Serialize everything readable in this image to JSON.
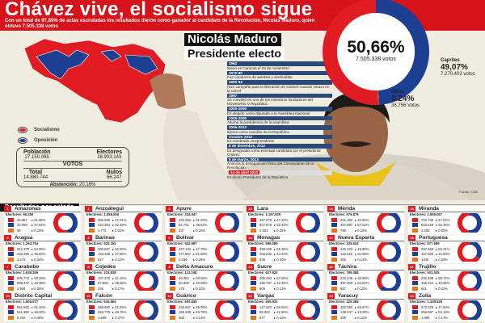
{
  "header": {
    "title": "Chávez vive, el socialismo sigue",
    "subtitle": "Con un total de 97,89% de actas escrutadas los resultados dieron como ganador al candidato de la Revolución, Nicolás Maduro, quien obtuvo 7.505.338 votos"
  },
  "colors": {
    "socialismo": "#e01b22",
    "oposicion": "#1c3f94",
    "otros": "#e8751a",
    "header": "#d6121a"
  },
  "legend": [
    {
      "label": "Socialismo",
      "color": "#e01b22"
    },
    {
      "label": "Oposición",
      "color": "#1c3f94"
    }
  ],
  "stats": {
    "poblacion_label": "Población",
    "poblacion": "27.150.095",
    "electores_label": "Electores",
    "electores": "18.903.143",
    "votos_label": "VOTOS",
    "total_label": "Total",
    "total": "14.880.744",
    "nulos_label": "Nulos",
    "nulos": "66.247",
    "abstencion_label": "Abstención:",
    "abstencion": "20.16%"
  },
  "winner": {
    "name": "Nicolás Maduro",
    "title": "Presidente electo",
    "percent": "50,66%",
    "votes": "7.505.338 votos",
    "share": 50.66
  },
  "capriles": {
    "label": "Capriles",
    "percent": "49,07%",
    "votes": "7.270.403 votos",
    "share": 49.07
  },
  "otros": {
    "label": "Otros",
    "percent": "0.24%",
    "votes": "38.756 Votos",
    "share": 0.24
  },
  "timeline": [
    {
      "date": "1962",
      "text": "Nació en Caracas el 23 de noviembre"
    },
    {
      "date": "1970-90",
      "text": "Fue conductor de autobús y sindicalista"
    },
    {
      "date": "1992-94",
      "text": "Hizo campaña para la liberación de Chávez cuando estuvo en la cárcel"
    },
    {
      "date": "1997",
      "text": "Se convirtió en uno de los miembros fundadores del Movimiento V República"
    },
    {
      "date": "2000-2006",
      "text": "Es elegido como diputado a la Asamblea Nacional"
    },
    {
      "date": "2005-2006",
      "text": "Asume la presidencia de la Asamblea"
    },
    {
      "date": "2006-2013",
      "text": "Ejerce como canciller de la República"
    },
    {
      "date": "Octubre 2012",
      "text": "Es nombrado vicepresidente"
    },
    {
      "date": "8 de diciembre, 2012",
      "text": "Es designado como eventual candidato por el presidente Chávez"
    },
    {
      "date": "5 de marzo, 2013",
      "text": "Anuncia la desaparición física del Comandante de la Revolución"
    },
    {
      "date": "14 de abril 2013",
      "text": "Es electo Presidente de la República",
      "highlight": true
    }
  ],
  "fuente": "Fuente: CNE",
  "results_title": "Resultados por estado",
  "electores_label": "Electores:",
  "states": [
    {
      "n": "1",
      "name": "Amazonas",
      "elec": "96.250",
      "r": [
        "35.867",
        "51.96%"
      ],
      "b": [
        "33.095",
        "47.82%"
      ],
      "o": [
        "98",
        "0.18%"
      ]
    },
    {
      "n": "2",
      "name": "Anzoátegui",
      "elec": "1.056.509",
      "r": [
        "382.590",
        "47.01%"
      ],
      "b": [
        "424.304",
        "52.46%"
      ],
      "o": [
        "1.772",
        "0.20%"
      ]
    },
    {
      "n": "3",
      "name": "Apure",
      "elec": "316.947",
      "r": [
        "134.252",
        "61.20%"
      ],
      "b": [
        "84.731",
        "38.64%"
      ],
      "o": [
        "347",
        "0.16%"
      ]
    },
    {
      "n": "4",
      "name": "Aragua",
      "elec": "1.264.754",
      "r": [
        "512.379",
        "54.05%"
      ],
      "b": [
        "432.280",
        "45.60%"
      ],
      "o": [
        "3.275",
        "0.34%"
      ]
    },
    {
      "n": "5",
      "name": "Barinas",
      "elec": "525.152",
      "r": [
        "200.687",
        "52.00%"
      ],
      "b": [
        "193.325",
        "47.86%"
      ],
      "o": [
        "527",
        "0.12%"
      ]
    },
    {
      "n": "6",
      "name": "Bolívar",
      "elec": "942.697",
      "r": [
        "347.132",
        "47.79%"
      ],
      "b": [
        "377.857",
        "51.93%"
      ],
      "o": [
        "2.039",
        "0.28%"
      ]
    },
    {
      "n": "7",
      "name": "Carabobo",
      "elec": "1.538.259",
      "r": [
        "606.772",
        "50.29%"
      ],
      "b": [
        "598.237",
        "49.35%"
      ],
      "o": [
        "2.964",
        "0.36%"
      ]
    },
    {
      "n": "8",
      "name": "Cojedes",
      "elec": "223.828",
      "r": [
        "107.370",
        "61.15%"
      ],
      "b": [
        "67.856",
        "38.65%"
      ],
      "o": [
        "336",
        "0.17%"
      ]
    },
    {
      "n": "9",
      "name": "Delta Amacuro",
      "elec": "113.248",
      "r": [
        "46.052",
        "59.68%"
      ],
      "b": [
        "30.929",
        "40.09%"
      ],
      "o": [
        "176",
        "0.22%"
      ]
    },
    {
      "n": "10",
      "name": "Distrito Capital",
      "elec": "1.608.577",
      "r": [
        "651.882",
        "51.32%"
      ],
      "b": [
        "611.369",
        "48.20%"
      ],
      "o": [
        "5.202",
        "0.48%"
      ]
    },
    {
      "n": "11",
      "name": "Falcón",
      "elec": "634.654",
      "r": [
        "268.982",
        "51.63%"
      ],
      "b": [
        "253.779",
        "48.76%"
      ],
      "o": [
        "1.608",
        "0.37%"
      ]
    },
    {
      "n": "12",
      "name": "Guárico",
      "elec": "500.835",
      "r": [
        "226.667",
        "59.09%"
      ],
      "b": [
        "156.288",
        "40.78%"
      ],
      "o": [
        "500",
        "0.13%"
      ]
    },
    {
      "n": "13",
      "name": "Lara",
      "elec": "1.197.939",
      "r": [
        "457.978",
        "47.32%"
      ],
      "b": [
        "507.878",
        "52.42%"
      ],
      "o": [
        "2.501",
        "0.25%"
      ]
    },
    {
      "n": "14",
      "name": "Mérida",
      "elec": "576.879",
      "r": [
        "201.282",
        "42.82%"
      ],
      "b": [
        "267.997",
        "57.02%"
      ],
      "o": [
        "796",
        "0.16%"
      ]
    },
    {
      "n": "15",
      "name": "Miranda",
      "elec": "1.959.067",
      "r": [
        "734.756",
        "47.04%"
      ],
      "b": [
        "818.228",
        "52.35%"
      ],
      "o": [
        "4.265",
        "0.60%"
      ]
    },
    {
      "n": "16",
      "name": "Monagas",
      "elec": "595.085",
      "r": [
        "258.335",
        "55.36%"
      ],
      "b": [
        "208.232",
        "44.43%"
      ],
      "o": [
        "939",
        "0.20%"
      ]
    },
    {
      "n": "17",
      "name": "Nueva Esparta",
      "elec": "325.544",
      "r": [
        "125.343",
        "46.90%"
      ],
      "b": [
        "142.210",
        "52.98%"
      ],
      "o": [
        "365",
        "0.14%"
      ]
    },
    {
      "n": "18",
      "name": "Portuguesa",
      "elec": "577.585",
      "r": [
        "297.469",
        "65.21%"
      ],
      "b": [
        "157.865",
        "34.50%"
      ],
      "o": [
        "1345",
        "0.29%"
      ]
    },
    {
      "n": "19",
      "name": "Sucre",
      "elec": "627.822",
      "r": [
        "265.252",
        "57.60%"
      ],
      "b": [
        "195.787",
        "42.45%"
      ],
      "o": [
        "609",
        "0.13%"
      ]
    },
    {
      "n": "20",
      "name": "Táchira",
      "elec": "799.088",
      "r": [
        "233.249",
        "36.95%"
      ],
      "b": [
        "397.303",
        "62.94%"
      ],
      "o": [
        "567",
        "0.10%"
      ]
    },
    {
      "n": "21",
      "name": "Trujillo",
      "elec": "501.535",
      "r": [
        "232.688",
        "59.72%"
      ],
      "b": [
        "156.324",
        "40.06%"
      ],
      "o": [
        "841",
        "0.22%"
      ]
    },
    {
      "n": "22",
      "name": "Vargas",
      "elec": "269.931",
      "r": [
        "127.622",
        "56.93%"
      ],
      "b": [
        "96.323",
        "42.65%"
      ],
      "o": [
        "877",
        "0.42%"
      ]
    },
    {
      "n": "23",
      "name": "Yaracuy",
      "elec": "425.385",
      "r": [
        "182.050",
        "56.67%"
      ],
      "b": [
        "139.047",
        "43.29%"
      ],
      "o": [
        "385",
        "0.12%"
      ]
    },
    {
      "n": "24",
      "name": "Zulia",
      "elec": "2.338.529",
      "r": [
        "873.428",
        "47.63%"
      ],
      "b": [
        "956.987",
        "52.18%"
      ],
      "o": [
        "1.369",
        "0.17%"
      ]
    }
  ]
}
